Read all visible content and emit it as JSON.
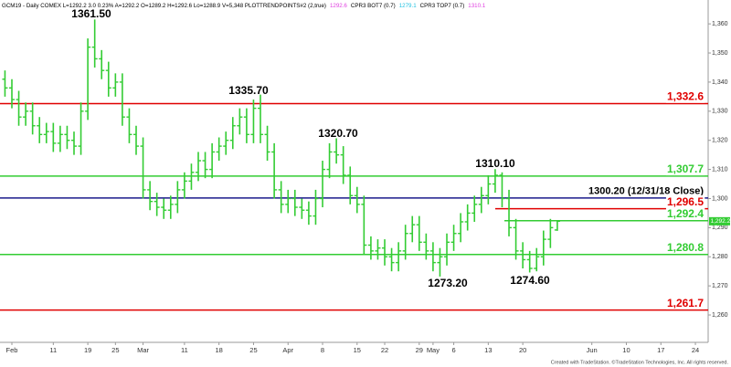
{
  "chart_data": {
    "type": "ohlc",
    "header": [
      {
        "text": "GCM19 - Daily  COMEX  L=1292.2  3.0  0.23%  A=1292.2  O=1289.2  H=1292.6  Lo=1288.9  V=5,348  PLOTTRENDPOINTS#2 (2,true)",
        "color": "#000000"
      },
      {
        "text": "1292.6",
        "color": "#e040e0"
      },
      {
        "text": "CPR3 BOT7 (0.7)",
        "color": "#000000"
      },
      {
        "text": "1279.1",
        "color": "#20c0e0"
      },
      {
        "text": "CPR3 TOP7 (0.7)",
        "color": "#000000"
      },
      {
        "text": "1310.1",
        "color": "#e040e0"
      }
    ],
    "footer": "Created with TradeStation. ©TradeStation Technologies, Inc. All rights reserved.",
    "categories": [
      null,
      "Feb",
      null,
      null,
      null,
      null,
      null,
      "11",
      null,
      null,
      null,
      null,
      "19",
      null,
      null,
      null,
      "25",
      null,
      null,
      null,
      "Mar",
      null,
      null,
      null,
      null,
      null,
      "11",
      null,
      null,
      null,
      null,
      "18",
      null,
      null,
      null,
      null,
      "25",
      null,
      null,
      null,
      null,
      "Apr",
      null,
      null,
      null,
      null,
      "8",
      null,
      null,
      null,
      null,
      "15",
      null,
      null,
      null,
      "22",
      null,
      null,
      null,
      null,
      "29",
      null,
      "May",
      null,
      null,
      "6",
      null,
      null,
      null,
      null,
      "13",
      null,
      null,
      null,
      null,
      "20",
      null,
      null,
      null,
      null,
      null,
      null,
      null,
      null,
      null,
      "Jun",
      null,
      null,
      null,
      null,
      "10",
      null,
      null,
      null,
      null,
      "17",
      null,
      null,
      null,
      null,
      "24",
      null
    ],
    "color": "#33cc33",
    "open": [
      1341,
      1338,
      1334,
      1328,
      1330,
      1325,
      1322,
      1323,
      1319,
      1322,
      1320,
      1318,
      1330,
      1352,
      1348,
      1344,
      1338,
      1340,
      1328,
      1322,
      1318,
      1303,
      1299,
      1297,
      1296,
      1298,
      1303,
      1306,
      1309,
      1313,
      1310,
      1316,
      1318,
      1320,
      1325,
      1328,
      1322,
      1331,
      1322,
      1316,
      1303,
      1298,
      1300,
      1297,
      1296,
      1294,
      1300,
      1310,
      1316,
      1315,
      1308,
      1301,
      1298,
      1284,
      1282,
      1283,
      1280,
      1278,
      1282,
      1288,
      1291,
      1285,
      1282,
      1278,
      1280,
      1285,
      1288,
      1292,
      1295,
      1298,
      1301,
      1305,
      1308,
      1300,
      1290,
      1282,
      1279,
      1276,
      1280,
      1286,
      1289.2,
      null,
      null,
      null,
      null,
      null,
      null,
      null,
      null,
      null,
      null,
      null,
      null,
      null,
      null,
      null,
      null,
      null,
      null,
      null,
      null,
      null
    ],
    "high": [
      1344,
      1341,
      1337,
      1333,
      1333,
      1328,
      1326,
      1326,
      1325,
      1325,
      1323,
      1333,
      1355,
      1361.5,
      1351,
      1347,
      1343,
      1343,
      1331,
      1325,
      1321,
      1306,
      1302,
      1300,
      1301,
      1306,
      1309,
      1312,
      1316,
      1316,
      1319,
      1321,
      1323,
      1328,
      1331,
      1331,
      1334,
      1335.7,
      1325,
      1319,
      1306,
      1303,
      1303,
      1300,
      1299,
      1303,
      1313,
      1319,
      1320.7,
      1318,
      1311,
      1304,
      1301,
      1287,
      1286,
      1286,
      1283,
      1285,
      1291,
      1294,
      1294,
      1288,
      1285,
      1283,
      1288,
      1291,
      1295,
      1298,
      1301,
      1304,
      1308,
      1310.1,
      1309,
      1303,
      1293,
      1285,
      1282,
      1283,
      1289,
      1293,
      1292.6,
      null,
      null,
      null,
      null,
      null,
      null,
      null,
      null,
      null,
      null,
      null,
      null,
      null,
      null,
      null,
      null,
      null,
      null,
      null,
      null,
      null
    ],
    "low": [
      1335,
      1331,
      1325,
      1325,
      1322,
      1319,
      1319,
      1316,
      1316,
      1317,
      1315,
      1315,
      1327,
      1345,
      1341,
      1335,
      1335,
      1325,
      1319,
      1315,
      1300,
      1296,
      1294,
      1293,
      1293,
      1295,
      1300,
      1303,
      1306,
      1307,
      1307,
      1313,
      1315,
      1317,
      1322,
      1319,
      1319,
      1319,
      1313,
      1300,
      1295,
      1295,
      1294,
      1293,
      1291,
      1291,
      1297,
      1307,
      1312,
      1305,
      1298,
      1295,
      1281,
      1279,
      1279,
      1277,
      1275,
      1275,
      1279,
      1285,
      1282,
      1279,
      1275,
      1273.2,
      1277,
      1282,
      1285,
      1289,
      1292,
      1295,
      1298,
      1302,
      1297,
      1287,
      1279,
      1276,
      1274.6,
      1275,
      1277,
      1283,
      1288.9,
      null,
      null,
      null,
      null,
      null,
      null,
      null,
      null,
      null,
      null,
      null,
      null,
      null,
      null,
      null,
      null,
      null,
      null,
      null,
      null,
      null
    ],
    "close": [
      1338,
      1334,
      1328,
      1330,
      1325,
      1322,
      1323,
      1319,
      1322,
      1320,
      1318,
      1330,
      1352,
      1348,
      1344,
      1338,
      1340,
      1328,
      1322,
      1318,
      1303,
      1299,
      1297,
      1296,
      1298,
      1303,
      1306,
      1309,
      1313,
      1310,
      1316,
      1318,
      1320,
      1325,
      1328,
      1322,
      1331,
      1322,
      1316,
      1303,
      1298,
      1300,
      1297,
      1296,
      1294,
      1300,
      1310,
      1316,
      1315,
      1308,
      1301,
      1298,
      1284,
      1282,
      1283,
      1280,
      1278,
      1282,
      1288,
      1291,
      1285,
      1282,
      1278,
      1280,
      1285,
      1288,
      1292,
      1295,
      1298,
      1301,
      1305,
      1308,
      1300,
      1290,
      1282,
      1279,
      1276,
      1280,
      1286,
      1290,
      1292.2,
      null,
      null,
      null,
      null,
      null,
      null,
      null,
      null,
      null,
      null,
      null,
      null,
      null,
      null,
      null,
      null,
      null,
      null,
      null,
      null,
      null
    ],
    "ylim": [
      1250.6,
      1368.2
    ],
    "yticks": [
      {
        "value": 1260,
        "label": "1,260"
      },
      {
        "value": 1270,
        "label": "1,270"
      },
      {
        "value": 1280,
        "label": "1,280"
      },
      {
        "value": 1290,
        "label": "1,290"
      },
      {
        "value": 1300,
        "label": "1,300"
      },
      {
        "value": 1310,
        "label": "1,310"
      },
      {
        "value": 1320,
        "label": "1,320"
      },
      {
        "value": 1330,
        "label": "1,330"
      },
      {
        "value": 1340,
        "label": "1,340"
      },
      {
        "value": 1350,
        "label": "1,350"
      },
      {
        "value": 1360,
        "label": "1,360"
      }
    ],
    "last_price": {
      "value": 1292.2,
      "label": "1,292.2"
    },
    "levels": [
      {
        "value": 1332.6,
        "label": "1,332.6",
        "color": "#e00000"
      },
      {
        "value": 1307.7,
        "label": "1,307.7",
        "color": "#33cc33"
      },
      {
        "value": 1300.2,
        "label": "1300.20 (12/31/18 Close)",
        "color": "#1a1a8c"
      },
      {
        "value": 1296.5,
        "label": "1,296.5",
        "color": "#e00000"
      },
      {
        "value": 1292.4,
        "label": "1,292.4",
        "color": "#33cc33"
      },
      {
        "value": 1280.8,
        "label": "1,280.8",
        "color": "#33cc33"
      },
      {
        "value": 1261.7,
        "label": "1,261.7",
        "color": "#e00000"
      }
    ],
    "annotations": [
      "1361.50",
      "1335.70",
      "1320.70",
      "1310.10",
      "1273.20",
      "1274.60"
    ]
  }
}
